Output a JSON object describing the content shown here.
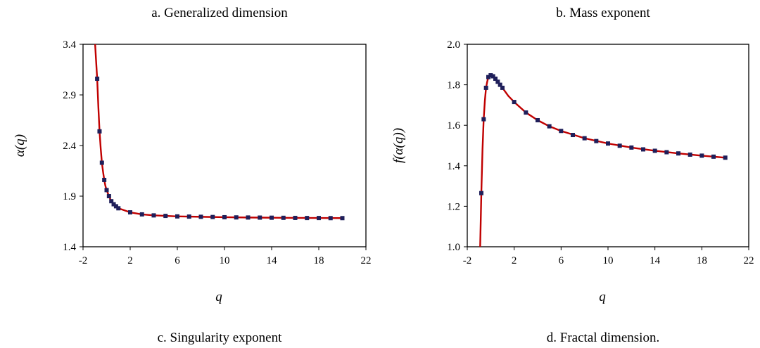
{
  "titles": {
    "a": "a. Generalized dimension",
    "b": "b. Mass exponent",
    "c": "c. Singularity exponent",
    "d": "d. Fractal dimension."
  },
  "colors": {
    "curve": "#c00000",
    "marker": "#1f1f5a",
    "axis": "#000000"
  },
  "chart_data": [
    {
      "type": "line",
      "xlabel": "q",
      "ylabel": "α(q)",
      "xlim": [
        -2,
        22
      ],
      "ylim": [
        1.4,
        3.4
      ],
      "xticks": [
        -2,
        2,
        6,
        10,
        14,
        18,
        22
      ],
      "yticks": [
        1.4,
        1.9,
        2.4,
        2.9,
        3.4
      ],
      "xtick_labels": [
        "-2",
        "2",
        "6",
        "10",
        "14",
        "18",
        "22"
      ],
      "ytick_labels": [
        "1.4",
        "1.9",
        "2.4",
        "2.9",
        "3.4"
      ],
      "series": [
        {
          "x": [
            -0.8,
            -0.6,
            -0.4,
            -0.2,
            0,
            0.2,
            0.4,
            0.6,
            0.8,
            1,
            2,
            3,
            4,
            5,
            6,
            7,
            8,
            9,
            10,
            11,
            12,
            13,
            14,
            15,
            16,
            17,
            18,
            19,
            20
          ],
          "y": [
            3.06,
            2.54,
            2.23,
            2.06,
            1.96,
            1.9,
            1.85,
            1.82,
            1.8,
            1.78,
            1.74,
            1.72,
            1.71,
            1.705,
            1.7,
            1.698,
            1.696,
            1.694,
            1.692,
            1.69,
            1.689,
            1.688,
            1.687,
            1.686,
            1.685,
            1.684,
            1.684,
            1.683,
            1.683
          ],
          "curve_x": [
            -1,
            -0.9,
            -0.8,
            -0.7,
            -0.6,
            -0.5,
            -0.4,
            -0.3,
            -0.2,
            -0.1,
            0,
            0.2,
            0.4,
            0.6,
            0.8,
            1,
            1.5,
            2,
            3,
            4,
            5,
            6,
            8,
            10,
            12,
            14,
            16,
            18,
            20
          ],
          "curve_y": [
            3.45,
            3.25,
            3.06,
            2.78,
            2.54,
            2.37,
            2.23,
            2.14,
            2.06,
            2.0,
            1.96,
            1.9,
            1.85,
            1.82,
            1.8,
            1.78,
            1.76,
            1.74,
            1.72,
            1.71,
            1.705,
            1.7,
            1.696,
            1.692,
            1.689,
            1.687,
            1.685,
            1.684,
            1.683
          ]
        }
      ]
    },
    {
      "type": "line",
      "xlabel": "q",
      "ylabel": "f(α(q))",
      "xlim": [
        -2,
        22
      ],
      "ylim": [
        1.0,
        2.0
      ],
      "xticks": [
        -2,
        2,
        6,
        10,
        14,
        18,
        22
      ],
      "yticks": [
        1.0,
        1.2,
        1.4,
        1.6,
        1.8,
        2.0
      ],
      "xtick_labels": [
        "-2",
        "2",
        "6",
        "10",
        "14",
        "18",
        "22"
      ],
      "ytick_labels": [
        "1.0",
        "1.2",
        "1.4",
        "1.6",
        "1.8",
        "2.0"
      ],
      "series": [
        {
          "x": [
            -0.8,
            -0.6,
            -0.4,
            -0.2,
            0,
            0.2,
            0.4,
            0.6,
            0.8,
            1,
            2,
            3,
            4,
            5,
            6,
            7,
            8,
            9,
            10,
            11,
            12,
            13,
            14,
            15,
            16,
            17,
            18,
            19,
            20
          ],
          "y": [
            1.265,
            1.63,
            1.785,
            1.838,
            1.847,
            1.842,
            1.83,
            1.815,
            1.8,
            1.785,
            1.715,
            1.663,
            1.625,
            1.595,
            1.572,
            1.552,
            1.536,
            1.522,
            1.51,
            1.499,
            1.49,
            1.481,
            1.474,
            1.467,
            1.461,
            1.455,
            1.45,
            1.445,
            1.44
          ],
          "curve_x": [
            -0.9,
            -0.85,
            -0.8,
            -0.7,
            -0.6,
            -0.5,
            -0.4,
            -0.3,
            -0.2,
            -0.1,
            0,
            0.2,
            0.4,
            0.6,
            0.8,
            1,
            1.5,
            2,
            3,
            4,
            5,
            6,
            8,
            10,
            12,
            14,
            16,
            18,
            20
          ],
          "curve_y": [
            1.0,
            1.13,
            1.265,
            1.48,
            1.63,
            1.72,
            1.785,
            1.815,
            1.838,
            1.845,
            1.847,
            1.842,
            1.83,
            1.815,
            1.8,
            1.785,
            1.745,
            1.715,
            1.663,
            1.625,
            1.595,
            1.572,
            1.536,
            1.51,
            1.49,
            1.474,
            1.461,
            1.45,
            1.44
          ]
        }
      ]
    }
  ]
}
